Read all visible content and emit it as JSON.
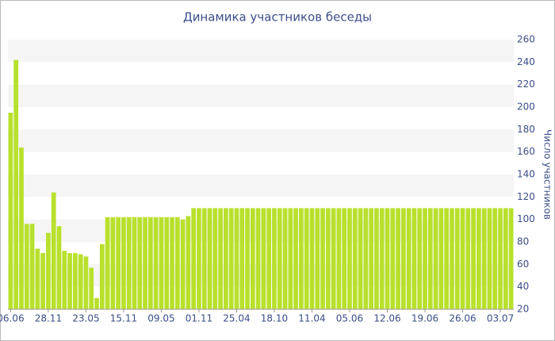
{
  "chart_data": {
    "type": "bar",
    "title": "Динамика участников беседы",
    "y_axis_label": "Число участников",
    "categories": [
      "06.06",
      null,
      null,
      null,
      null,
      null,
      null,
      "28.11",
      null,
      null,
      null,
      null,
      null,
      null,
      "23.05",
      null,
      null,
      null,
      null,
      null,
      null,
      "15.11",
      null,
      null,
      null,
      null,
      null,
      null,
      "09.05",
      null,
      null,
      null,
      null,
      null,
      null,
      "01.11",
      null,
      null,
      null,
      null,
      null,
      null,
      "25.04",
      null,
      null,
      null,
      null,
      null,
      null,
      "18.10",
      null,
      null,
      null,
      null,
      null,
      null,
      "11.04",
      null,
      null,
      null,
      null,
      null,
      null,
      "05.06",
      null,
      null,
      null,
      null,
      null,
      null,
      "12.06",
      null,
      null,
      null,
      null,
      null,
      null,
      "19.06",
      null,
      null,
      null,
      null,
      null,
      null,
      "26.06",
      null,
      null,
      null,
      null,
      null,
      null,
      "03.07",
      null,
      null
    ],
    "values": [
      195,
      242,
      164,
      96,
      96,
      74,
      70,
      88,
      124,
      94,
      72,
      70,
      70,
      69,
      67,
      57,
      30,
      78,
      102,
      102,
      102,
      102,
      102,
      102,
      102,
      102,
      102,
      102,
      102,
      102,
      102,
      102,
      100,
      103,
      110,
      110,
      110,
      110,
      110,
      110,
      110,
      110,
      110,
      110,
      110,
      110,
      110,
      110,
      110,
      110,
      110,
      110,
      110,
      110,
      110,
      110,
      110,
      110,
      110,
      110,
      110,
      110,
      110,
      110,
      110,
      110,
      110,
      110,
      110,
      110,
      110,
      110,
      110,
      110,
      110,
      110,
      110,
      110,
      110,
      110,
      110,
      110,
      110,
      110,
      110,
      110,
      110,
      110,
      110,
      110,
      110,
      110,
      110,
      110
    ],
    "color": "#b8e02c",
    "ylim": [
      20,
      260
    ],
    "yticks": [
      20,
      40,
      60,
      80,
      100,
      120,
      140,
      160,
      180,
      200,
      220,
      240,
      260
    ],
    "grid": true,
    "y_axis_side": "right"
  }
}
